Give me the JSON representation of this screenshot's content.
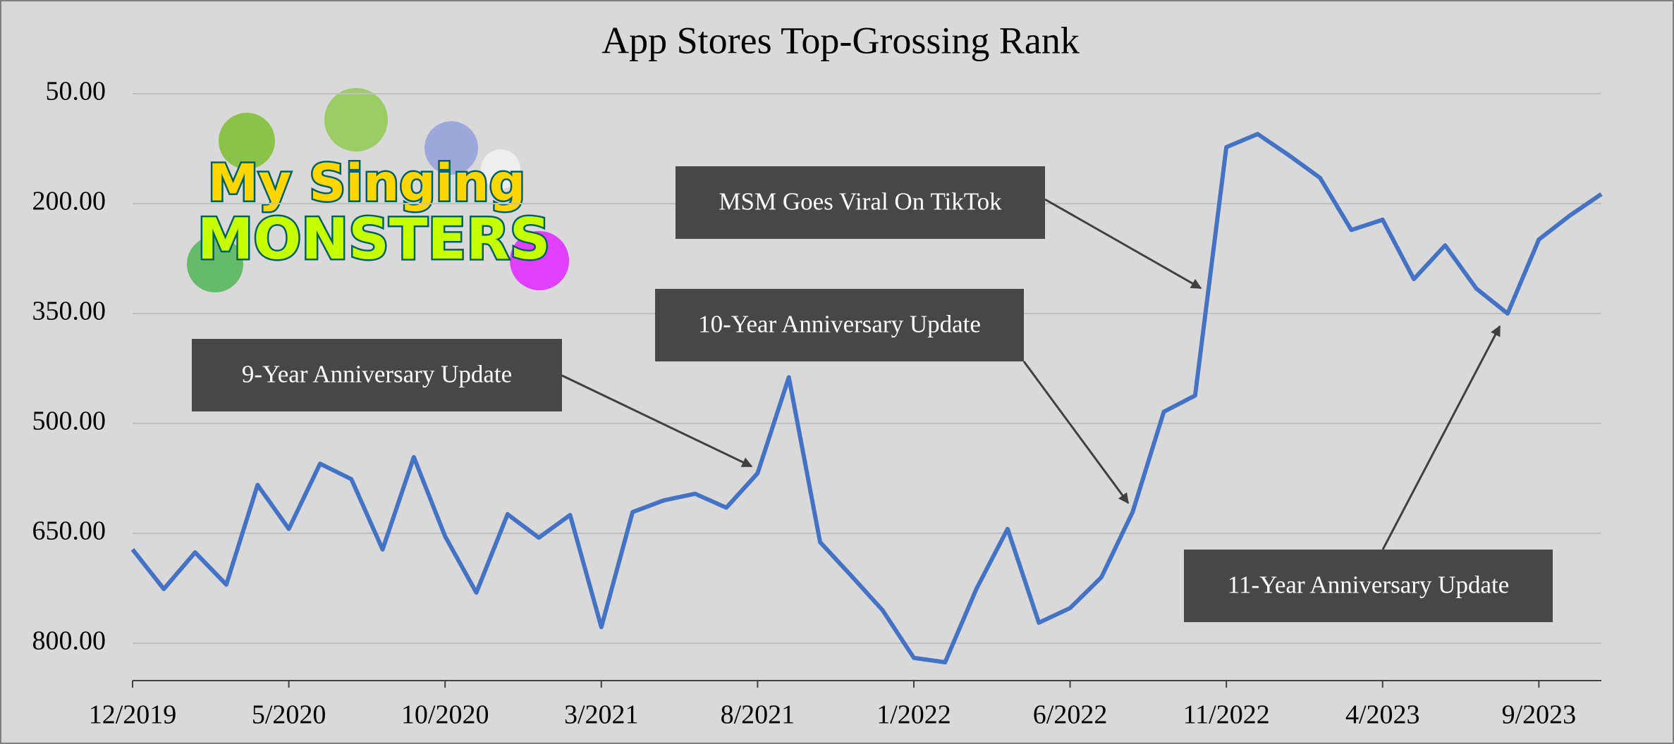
{
  "chart_data": {
    "type": "line",
    "title": "App Stores Top-Grossing Rank",
    "logo": [
      "My Singing",
      "MONSTERS"
    ],
    "categories": [
      "12/2019",
      null,
      null,
      null,
      null,
      "5/2020",
      null,
      null,
      null,
      null,
      "10/2020",
      null,
      null,
      null,
      null,
      "3/2021",
      null,
      null,
      null,
      null,
      "8/2021",
      null,
      null,
      null,
      null,
      "1/2022",
      null,
      null,
      null,
      null,
      "6/2022",
      null,
      null,
      null,
      null,
      "11/2022",
      null,
      null,
      null,
      null,
      "4/2023",
      null,
      null,
      null,
      null,
      "9/2023",
      null,
      null
    ],
    "series": [
      {
        "color": "#4472c4",
        "values": [
          672,
          726,
          676,
          720,
          584,
          644,
          555,
          576,
          672,
          546,
          654,
          731,
          624,
          656,
          625,
          778,
          621,
          605,
          596,
          615,
          568,
          437,
          662,
          708,
          755,
          820,
          826,
          726,
          644,
          772,
          752,
          710,
          621,
          484,
          462,
          123,
          105,
          134,
          165,
          236,
          222,
          303,
          257,
          316,
          350,
          249,
          216,
          187
        ]
      }
    ],
    "ylim": [
      851,
      50
    ],
    "yticks": [
      {
        "value": 50,
        "label": "50.00"
      },
      {
        "value": 200,
        "label": "200.00"
      },
      {
        "value": 350,
        "label": "350.00"
      },
      {
        "value": 500,
        "label": "500.00"
      },
      {
        "value": 650,
        "label": "650.00"
      },
      {
        "value": 800,
        "label": "800.00"
      }
    ],
    "grid": true,
    "annotations": [
      {
        "text": "MSM Goes Viral On TikTok"
      },
      {
        "text": "10-Year Anniversary Update"
      },
      {
        "text": "9-Year Anniversary Update"
      },
      {
        "text": "11-Year Anniversary Update"
      }
    ]
  }
}
